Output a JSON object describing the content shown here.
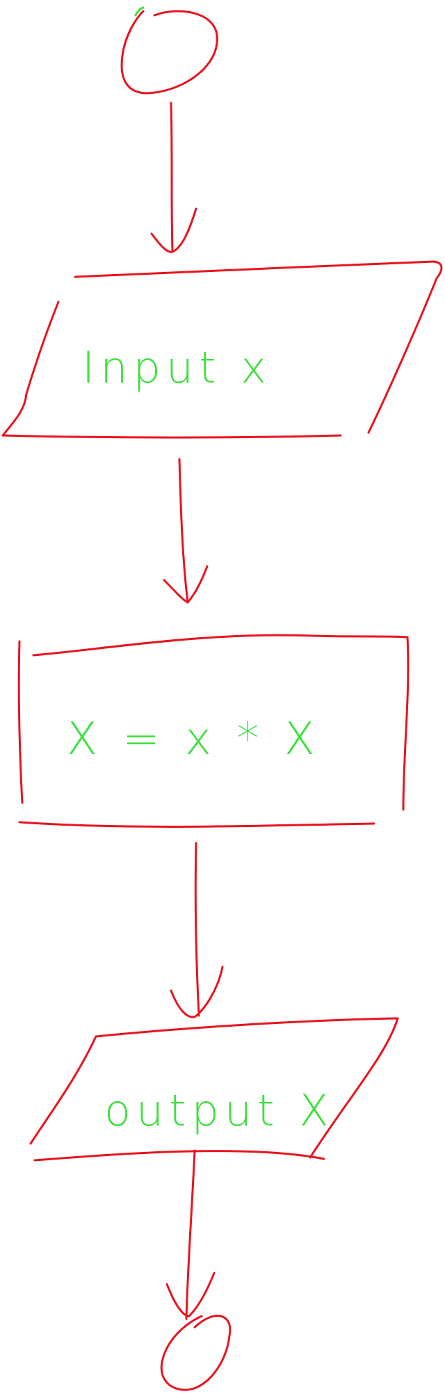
{
  "diagram": {
    "colors": {
      "shape_stroke": "#e8141e",
      "text": "#3de03d",
      "background": "#ffffff"
    },
    "nodes": [
      {
        "id": "start",
        "shape": "terminal",
        "text": ""
      },
      {
        "id": "input",
        "shape": "parallelogram",
        "text": "Input x"
      },
      {
        "id": "process",
        "shape": "rectangle",
        "text": "X = x * X"
      },
      {
        "id": "output",
        "shape": "parallelogram",
        "text": "output X"
      },
      {
        "id": "end",
        "shape": "terminal",
        "text": ""
      }
    ],
    "edges": [
      {
        "from": "start",
        "to": "input"
      },
      {
        "from": "input",
        "to": "process"
      },
      {
        "from": "process",
        "to": "output"
      },
      {
        "from": "output",
        "to": "end"
      }
    ]
  }
}
